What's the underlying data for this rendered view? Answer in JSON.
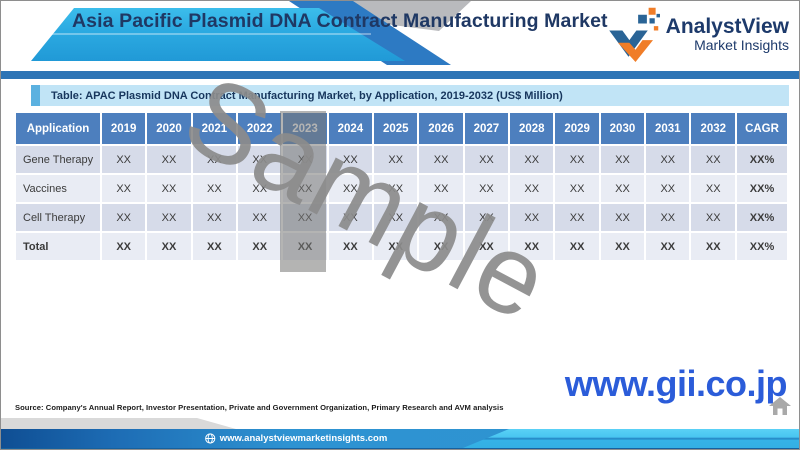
{
  "page": {
    "title": "Asia Pacific Plasmid DNA Contract Manufacturing Market"
  },
  "logo": {
    "name": "AnalystView",
    "tagline": "Market Insights"
  },
  "table": {
    "caption": "Table: APAC Plasmid DNA Contract Manufacturing Market, by Application, 2019-2032 (US$ Million)",
    "columns": [
      "Application",
      "2019",
      "2020",
      "2021",
      "2022",
      "2023",
      "2024",
      "2025",
      "2026",
      "2027",
      "2028",
      "2029",
      "2030",
      "2031",
      "2032",
      "CAGR"
    ],
    "highlighted_column": "2023",
    "rows": [
      {
        "label": "Gene Therapy",
        "values": [
          "XX",
          "XX",
          "XX",
          "XX",
          "XX",
          "XX",
          "XX",
          "XX",
          "XX",
          "XX",
          "XX",
          "XX",
          "XX",
          "XX"
        ],
        "cagr": "XX%",
        "bold": false
      },
      {
        "label": "Vaccines",
        "values": [
          "XX",
          "XX",
          "XX",
          "XX",
          "XX",
          "XX",
          "XX",
          "XX",
          "XX",
          "XX",
          "XX",
          "XX",
          "XX",
          "XX"
        ],
        "cagr": "XX%",
        "bold": false
      },
      {
        "label": "Cell Therapy",
        "values": [
          "XX",
          "XX",
          "XX",
          "XX",
          "XX",
          "XX",
          "XX",
          "XX",
          "XX",
          "XX",
          "XX",
          "XX",
          "XX",
          "XX"
        ],
        "cagr": "XX%",
        "bold": false
      },
      {
        "label": "Total",
        "values": [
          "XX",
          "XX",
          "XX",
          "XX",
          "XX",
          "XX",
          "XX",
          "XX",
          "XX",
          "XX",
          "XX",
          "XX",
          "XX",
          "XX"
        ],
        "cagr": "XX%",
        "bold": true
      }
    ]
  },
  "watermark": "Sample",
  "gii_link": "www.gii.co.jp",
  "source_note": "Source: Company's Annual Report, Investor Presentation, Private and Government Organization, Primary Research and AVM analysis",
  "footer": {
    "website": "www.analystviewmarketinsights.com"
  },
  "colors": {
    "header_blue": "#4d7fbe",
    "row_dark": "#d6dbe9",
    "row_light": "#e9ecf4",
    "caption_bg": "#c1e4f6",
    "brand_navy": "#1d3a6b",
    "gii_blue": "#2b5cd9",
    "highlight_gray": "rgba(118,118,116,0.55)",
    "watermark_gray": "#8c8c8c"
  }
}
